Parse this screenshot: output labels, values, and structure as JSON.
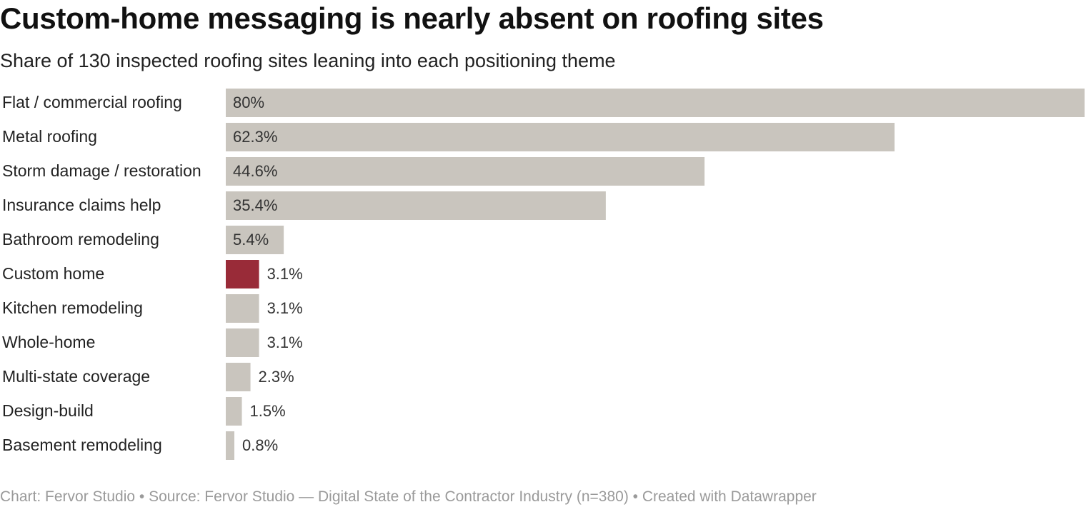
{
  "chart_data": {
    "type": "bar",
    "orientation": "horizontal",
    "title": "Custom-home messaging is nearly absent on roofing sites",
    "subtitle": "Share of 130 inspected roofing sites leaning into each positioning theme",
    "categories": [
      "Flat / commercial roofing",
      "Metal roofing",
      "Storm damage / restoration",
      "Insurance claims help",
      "Bathroom remodeling",
      "Custom home",
      "Kitchen remodeling",
      "Whole-home",
      "Multi-state coverage",
      "Design-build",
      "Basement remodeling"
    ],
    "values": [
      80,
      62.3,
      44.6,
      35.4,
      5.4,
      3.1,
      3.1,
      3.1,
      2.3,
      1.5,
      0.8
    ],
    "value_labels": [
      "80%",
      "62.3%",
      "44.6%",
      "35.4%",
      "5.4%",
      "3.1%",
      "3.1%",
      "3.1%",
      "2.3%",
      "1.5%",
      "0.8%"
    ],
    "highlight": "Custom home",
    "xlim": [
      0,
      80
    ],
    "grid": false,
    "colors": {
      "bar": "#c9c5be",
      "highlight": "#992b38",
      "label": "#333333"
    }
  },
  "footer": {
    "text": "Chart: Fervor Studio • Source: Fervor Studio — Digital State of the Contractor Industry (n=380) • Created with Datawrapper"
  }
}
